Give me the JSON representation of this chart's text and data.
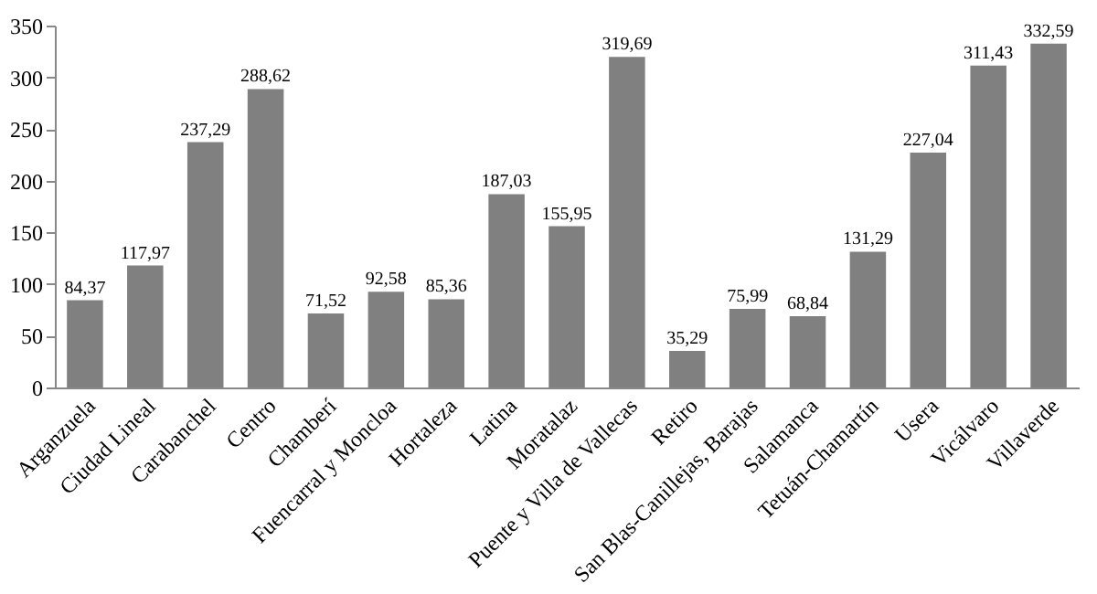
{
  "chart_data": {
    "type": "bar",
    "categories": [
      "Arganzuela",
      "Ciudad Lineal",
      "Carabanchel",
      "Centro",
      "Chamberí",
      "Fuencarral y Moncloa",
      "Hortaleza",
      "Latina",
      "Moratalaz",
      "Puente y Villa de Vallecas",
      "Retiro",
      "San Blas-Canillejas, Barajas",
      "Salamanca",
      "Tetuán-Chamartín",
      "Usera",
      "Vicálvaro",
      "Villaverde"
    ],
    "values": [
      84.37,
      117.97,
      237.29,
      288.62,
      71.52,
      92.58,
      85.36,
      187.03,
      155.95,
      319.69,
      35.29,
      75.99,
      68.84,
      131.29,
      227.04,
      311.43,
      332.59
    ],
    "value_labels": [
      "84,37",
      "117,97",
      "237,29",
      "288,62",
      "71,52",
      "92,58",
      "85,36",
      "187,03",
      "155,95",
      "319,69",
      "35,29",
      "75,99",
      "68,84",
      "131,29",
      "227,04",
      "311,43",
      "332,59"
    ],
    "color": "#808080",
    "ylim": [
      0,
      350
    ],
    "yticks": [
      0,
      50,
      100,
      150,
      200,
      250,
      300,
      350
    ],
    "grid": false
  }
}
